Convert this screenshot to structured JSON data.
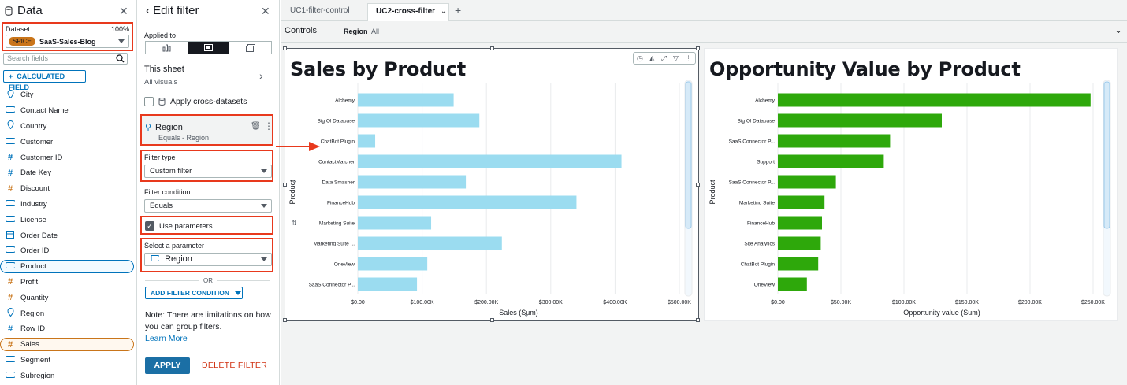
{
  "data_panel": {
    "title": "Data",
    "dataset_label": "Dataset",
    "dataset_percent": "100%",
    "spice_badge": "SPICE",
    "dataset_name": "SaaS-Sales-Blog",
    "search_placeholder": "Search fields",
    "calculated_field_label": "CALCULATED FIELD",
    "fields": [
      {
        "name": "City",
        "icon": "location-icon",
        "kind": "dimension"
      },
      {
        "name": "Contact Name",
        "icon": "string-icon",
        "kind": "dimension"
      },
      {
        "name": "Country",
        "icon": "location-icon",
        "kind": "dimension"
      },
      {
        "name": "Customer",
        "icon": "string-icon",
        "kind": "dimension"
      },
      {
        "name": "Customer ID",
        "icon": "number-icon",
        "kind": "dimension"
      },
      {
        "name": "Date Key",
        "icon": "number-icon",
        "kind": "dimension"
      },
      {
        "name": "Discount",
        "icon": "number-icon",
        "kind": "measure"
      },
      {
        "name": "Industry",
        "icon": "string-icon",
        "kind": "dimension"
      },
      {
        "name": "License",
        "icon": "string-icon",
        "kind": "dimension"
      },
      {
        "name": "Order Date",
        "icon": "calendar-icon",
        "kind": "dimension"
      },
      {
        "name": "Order ID",
        "icon": "string-icon",
        "kind": "dimension"
      },
      {
        "name": "Product",
        "icon": "string-icon",
        "kind": "dimension"
      },
      {
        "name": "Profit",
        "icon": "number-icon",
        "kind": "measure"
      },
      {
        "name": "Quantity",
        "icon": "number-icon",
        "kind": "measure"
      },
      {
        "name": "Region",
        "icon": "location-icon",
        "kind": "dimension"
      },
      {
        "name": "Row ID",
        "icon": "number-icon",
        "kind": "dimension"
      },
      {
        "name": "Sales",
        "icon": "number-icon",
        "kind": "measure"
      },
      {
        "name": "Segment",
        "icon": "string-icon",
        "kind": "dimension"
      },
      {
        "name": "Subregion",
        "icon": "string-icon",
        "kind": "dimension"
      }
    ]
  },
  "filter_panel": {
    "title": "Edit filter",
    "applied_to_label": "Applied to",
    "scope_title": "This sheet",
    "scope_sub": "All visuals",
    "cross_datasets_label": "Apply cross-datasets",
    "filter_name": "Region",
    "filter_summary": "Equals - Region",
    "filter_type_label": "Filter type",
    "filter_type_value": "Custom filter",
    "filter_condition_label": "Filter condition",
    "filter_condition_value": "Equals",
    "use_parameters_label": "Use parameters",
    "select_parameter_label": "Select a parameter",
    "parameter_value": "Region",
    "or_label": "OR",
    "add_condition_label": "ADD FILTER CONDITION",
    "note_text": "Note: There are limitations on how you can group filters.",
    "learn_more": "Learn More",
    "apply_label": "APPLY",
    "delete_label": "DELETE FILTER"
  },
  "tabs": [
    {
      "label": "UC1-filter-control",
      "active": false
    },
    {
      "label": "UC2-cross-filter",
      "active": true
    }
  ],
  "controls": {
    "title": "Controls",
    "control_name": "Region",
    "control_value": "All"
  },
  "colors": {
    "highlight": "#e8391d",
    "sales_bar": "#9bdcf0",
    "opp_bar": "#2ea80b",
    "link": "#0073bb"
  },
  "chart_data": [
    {
      "type": "bar",
      "orientation": "horizontal",
      "title": "Sales by Product",
      "ylabel": "Product",
      "xlabel": "Sales (Sum)",
      "categories": [
        "Alchemy",
        "Big Ol Database",
        "ChatBot Plugin",
        "ContactMatcher",
        "Data Smasher",
        "FinanceHub",
        "Marketing Suite",
        "Marketing Suite ...",
        "OneView",
        "SaaS Connector P..."
      ],
      "values": [
        149000,
        189000,
        27000,
        410000,
        168000,
        340000,
        114000,
        224000,
        108000,
        92000
      ],
      "xlim": [
        0,
        500000
      ],
      "ticks": [
        "$0.00",
        "$100.00K",
        "$200.00K",
        "$300.00K",
        "$400.00K",
        "$500.00K"
      ],
      "tick_values": [
        0,
        100000,
        200000,
        300000,
        400000,
        500000
      ]
    },
    {
      "type": "bar",
      "orientation": "horizontal",
      "title": "Opportunity Value by Product",
      "ylabel": "Product",
      "xlabel": "Opportunity value (Sum)",
      "categories": [
        "Alchemy",
        "Big Ol Database",
        "SaaS Connector P...",
        "Support",
        "SaaS Connector P...",
        "Marketing Suite",
        "FinanceHub",
        "Site Analytics",
        "ChatBot Plugin",
        "OneView"
      ],
      "values": [
        248000,
        130000,
        89000,
        84000,
        46000,
        37000,
        35000,
        34000,
        32000,
        23000
      ],
      "xlim": [
        0,
        260000
      ],
      "ticks": [
        "$0.00",
        "$50.00K",
        "$100.00K",
        "$150.00K",
        "$200.00K",
        "$250.00K"
      ],
      "tick_values": [
        0,
        50000,
        100000,
        150000,
        200000,
        250000
      ]
    }
  ]
}
